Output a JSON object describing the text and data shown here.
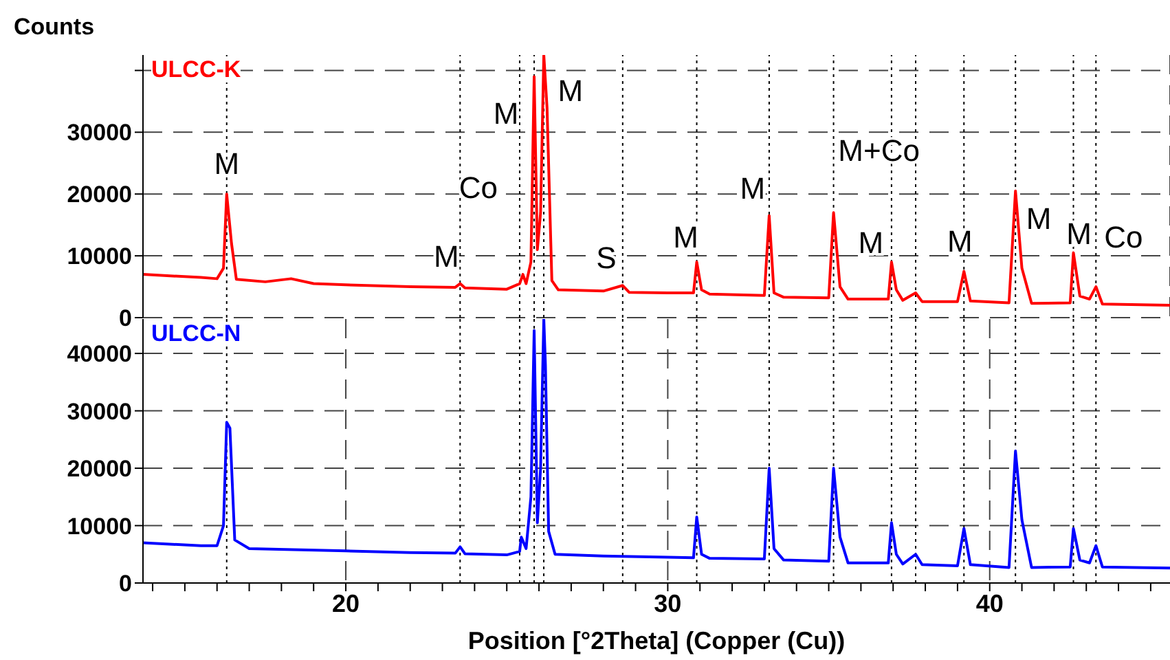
{
  "chart_data": [
    {
      "type": "line",
      "ylabel": "Counts",
      "xlim": [
        13.7,
        45.6
      ],
      "ylim": [
        0,
        42500
      ],
      "yticks": [
        0,
        10000,
        20000,
        30000,
        {
          "value": 40000,
          "label": null
        }
      ],
      "tick_labels": "y",
      "grid": true,
      "line_style": "solid",
      "marker": "none",
      "series": [
        {
          "name": "ULCC-K",
          "color": "#ff0000",
          "x": [
            13.7,
            15.5,
            16.0,
            16.2,
            16.3,
            16.45,
            16.6,
            17.5,
            18.3,
            19.0,
            20.0,
            22.0,
            23.4,
            23.55,
            23.7,
            25.0,
            25.4,
            25.5,
            25.6,
            25.75,
            25.85,
            25.95,
            26.05,
            26.15,
            26.25,
            26.4,
            26.6,
            28.0,
            28.6,
            28.8,
            30.0,
            30.8,
            30.9,
            31.05,
            31.3,
            33.0,
            33.15,
            33.3,
            33.6,
            35.0,
            35.15,
            35.35,
            35.6,
            36.85,
            36.95,
            37.1,
            37.3,
            37.7,
            37.9,
            39.0,
            39.2,
            39.4,
            40.6,
            40.8,
            41.0,
            41.3,
            42.5,
            42.6,
            42.8,
            43.1,
            43.3,
            43.5,
            45.6
          ],
          "values": [
            7000,
            6500,
            6300,
            8000,
            20000,
            12000,
            6200,
            5800,
            6300,
            5500,
            5300,
            5000,
            4900,
            5500,
            4800,
            4600,
            5500,
            7000,
            5500,
            9000,
            39000,
            11000,
            17000,
            42500,
            34000,
            6000,
            4500,
            4300,
            5200,
            4100,
            4000,
            4000,
            9000,
            4500,
            3800,
            3600,
            16500,
            4000,
            3300,
            3200,
            17000,
            5000,
            3000,
            3000,
            9000,
            4500,
            2800,
            4000,
            2600,
            2600,
            7500,
            2700,
            2400,
            20500,
            8000,
            2300,
            2400,
            10500,
            3500,
            3000,
            5000,
            2200,
            2000
          ]
        }
      ],
      "ref_lines": [
        {
          "axis": "x",
          "value": 16.3,
          "color": "#000000",
          "line_style": "dotted"
        },
        {
          "axis": "x",
          "value": 23.55,
          "color": "#000000",
          "line_style": "dotted"
        },
        {
          "axis": "x",
          "value": 25.4,
          "color": "#000000",
          "line_style": "dotted"
        },
        {
          "axis": "x",
          "value": 25.85,
          "color": "#000000",
          "line_style": "dotted"
        },
        {
          "axis": "x",
          "value": 26.15,
          "color": "#000000",
          "line_style": "dotted"
        },
        {
          "axis": "x",
          "value": 28.6,
          "color": "#000000",
          "line_style": "dotted"
        },
        {
          "axis": "x",
          "value": 30.9,
          "color": "#000000",
          "line_style": "dotted"
        },
        {
          "axis": "x",
          "value": 33.15,
          "color": "#000000",
          "line_style": "dotted"
        },
        {
          "axis": "x",
          "value": 35.15,
          "color": "#000000",
          "line_style": "dotted"
        },
        {
          "axis": "x",
          "value": 36.95,
          "color": "#000000",
          "line_style": "dotted"
        },
        {
          "axis": "x",
          "value": 37.7,
          "color": "#000000",
          "line_style": "dotted"
        },
        {
          "axis": "x",
          "value": 39.2,
          "color": "#000000",
          "line_style": "dotted"
        },
        {
          "axis": "x",
          "value": 40.8,
          "color": "#000000",
          "line_style": "dotted"
        },
        {
          "axis": "x",
          "value": 42.6,
          "color": "#000000",
          "line_style": "dotted"
        },
        {
          "axis": "x",
          "value": 43.3,
          "color": "#000000",
          "line_style": "dotted"
        }
      ],
      "annotations": [
        {
          "text": "M",
          "x": 16.3,
          "y": 20000
        },
        {
          "text": "M",
          "x": 23.55,
          "y": 5500
        },
        {
          "text": "Co",
          "x": 25.4,
          "y": 7000
        },
        {
          "text": "M",
          "x": 25.83,
          "y": 33000
        },
        {
          "text": "M",
          "x": 26.25,
          "y": 34000
        },
        {
          "text": "S",
          "x": 28.6,
          "y": 5200
        },
        {
          "text": "M",
          "x": 30.9,
          "y": 9000
        },
        {
          "text": "M",
          "x": 33.15,
          "y": 16500
        },
        {
          "text": "M+Co",
          "x": 35.15,
          "y": 17000
        },
        {
          "text": "M",
          "x": 36.95,
          "y": 9000
        },
        {
          "text": "M",
          "x": 39.2,
          "y": 7500
        },
        {
          "text": "M",
          "x": 40.8,
          "y": 20500
        },
        {
          "text": "M",
          "x": 42.6,
          "y": 10500
        },
        {
          "text": "Co",
          "x": 43.3,
          "y": 5000
        }
      ]
    },
    {
      "type": "line",
      "xlabel": "Position [°2Theta] (Copper (Cu))",
      "xlim": [
        13.7,
        45.6
      ],
      "xticks": [
        {
          "value": 14,
          "label": null
        },
        {
          "value": 15,
          "label": null
        },
        {
          "value": 16,
          "label": null
        },
        {
          "value": 17,
          "label": null
        },
        {
          "value": 18,
          "label": null
        },
        {
          "value": 19,
          "label": null
        },
        20,
        {
          "value": 21,
          "label": null
        },
        {
          "value": 22,
          "label": null
        },
        {
          "value": 23,
          "label": null
        },
        {
          "value": 24,
          "label": null
        },
        {
          "value": 25,
          "label": null
        },
        {
          "value": 26,
          "label": null
        },
        {
          "value": 27,
          "label": null
        },
        {
          "value": 28,
          "label": null
        },
        {
          "value": 29,
          "label": null
        },
        30,
        {
          "value": 31,
          "label": null
        },
        {
          "value": 32,
          "label": null
        },
        {
          "value": 33,
          "label": null
        },
        {
          "value": 34,
          "label": null
        },
        {
          "value": 35,
          "label": null
        },
        {
          "value": 36,
          "label": null
        },
        {
          "value": 37,
          "label": null
        },
        {
          "value": 38,
          "label": null
        },
        {
          "value": 39,
          "label": null
        },
        40,
        {
          "value": 41,
          "label": null
        },
        {
          "value": 42,
          "label": null
        },
        {
          "value": 43,
          "label": null
        },
        {
          "value": 44,
          "label": null
        },
        {
          "value": 45,
          "label": null
        }
      ],
      "ylim": [
        0,
        46000
      ],
      "yticks": [
        0,
        10000,
        20000,
        30000,
        40000
      ],
      "grid": true,
      "line_style": "solid",
      "marker": "none",
      "series": [
        {
          "name": "ULCC-N",
          "color": "#0000ff",
          "x": [
            13.7,
            15.5,
            16.0,
            16.2,
            16.3,
            16.4,
            16.55,
            17.0,
            20.0,
            22.0,
            23.4,
            23.55,
            23.7,
            25.0,
            25.4,
            25.45,
            25.6,
            25.75,
            25.85,
            25.95,
            26.05,
            26.15,
            26.2,
            26.3,
            26.5,
            28.0,
            30.0,
            30.8,
            30.9,
            31.05,
            31.3,
            33.0,
            33.15,
            33.3,
            33.6,
            35.0,
            35.15,
            35.35,
            35.6,
            36.85,
            36.95,
            37.1,
            37.3,
            37.7,
            37.9,
            39.0,
            39.2,
            39.4,
            40.6,
            40.8,
            41.0,
            41.3,
            42.5,
            42.6,
            42.8,
            43.1,
            43.3,
            43.5,
            45.6
          ],
          "values": [
            7000,
            6500,
            6500,
            10000,
            28000,
            27000,
            7500,
            6000,
            5600,
            5300,
            5200,
            6300,
            5100,
            4900,
            5500,
            8000,
            6000,
            15000,
            44000,
            10500,
            20000,
            46000,
            38000,
            9000,
            5000,
            4700,
            4500,
            4400,
            11500,
            5000,
            4300,
            4200,
            20000,
            6000,
            4000,
            3800,
            20000,
            8000,
            3500,
            3500,
            10500,
            5000,
            3300,
            5000,
            3200,
            3000,
            9500,
            3200,
            2700,
            23000,
            11000,
            2700,
            2800,
            9500,
            4000,
            3500,
            6500,
            2800,
            2600
          ]
        }
      ],
      "ref_lines": [
        {
          "axis": "x",
          "value": 16.3,
          "color": "#000000",
          "line_style": "dotted"
        },
        {
          "axis": "x",
          "value": 23.55,
          "color": "#000000",
          "line_style": "dotted"
        },
        {
          "axis": "x",
          "value": 25.4,
          "color": "#000000",
          "line_style": "dotted"
        },
        {
          "axis": "x",
          "value": 25.85,
          "color": "#000000",
          "line_style": "dotted"
        },
        {
          "axis": "x",
          "value": 26.15,
          "color": "#000000",
          "line_style": "dotted"
        },
        {
          "axis": "x",
          "value": 28.6,
          "color": "#000000",
          "line_style": "dotted"
        },
        {
          "axis": "x",
          "value": 30.9,
          "color": "#000000",
          "line_style": "dotted"
        },
        {
          "axis": "x",
          "value": 33.15,
          "color": "#000000",
          "line_style": "dotted"
        },
        {
          "axis": "x",
          "value": 35.15,
          "color": "#000000",
          "line_style": "dotted"
        },
        {
          "axis": "x",
          "value": 36.95,
          "color": "#000000",
          "line_style": "dotted"
        },
        {
          "axis": "x",
          "value": 37.7,
          "color": "#000000",
          "line_style": "dotted"
        },
        {
          "axis": "x",
          "value": 39.2,
          "color": "#000000",
          "line_style": "dotted"
        },
        {
          "axis": "x",
          "value": 40.8,
          "color": "#000000",
          "line_style": "dotted"
        },
        {
          "axis": "x",
          "value": 42.6,
          "color": "#000000",
          "line_style": "dotted"
        },
        {
          "axis": "x",
          "value": 43.3,
          "color": "#000000",
          "line_style": "dotted"
        }
      ]
    }
  ]
}
